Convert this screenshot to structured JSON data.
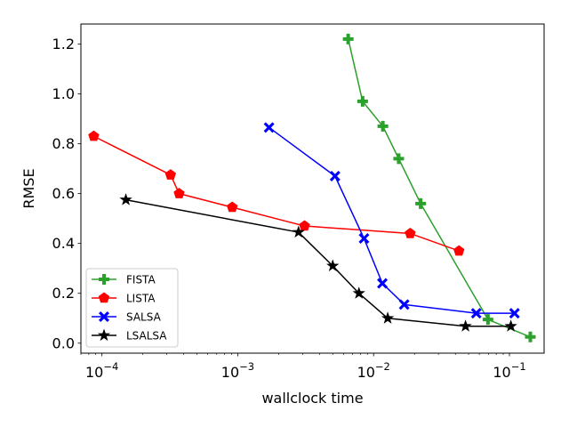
{
  "chart_data": {
    "type": "line",
    "title": "",
    "xlabel": "wallclock time",
    "ylabel": "RMSE",
    "xscale": "log",
    "xlim": [
      7e-05,
      0.18
    ],
    "ylim": [
      -0.04,
      1.28
    ],
    "x_ticks": [
      {
        "value": 0.0001,
        "base": "10",
        "exp": "−4"
      },
      {
        "value": 0.001,
        "base": "10",
        "exp": "−3"
      },
      {
        "value": 0.01,
        "base": "10",
        "exp": "−2"
      },
      {
        "value": 0.1,
        "base": "10",
        "exp": "−1"
      }
    ],
    "y_ticks": [
      {
        "value": 0.0,
        "label": "0.0"
      },
      {
        "value": 0.2,
        "label": "0.2"
      },
      {
        "value": 0.4,
        "label": "0.4"
      },
      {
        "value": 0.6,
        "label": "0.6"
      },
      {
        "value": 0.8,
        "label": "0.8"
      },
      {
        "value": 1.0,
        "label": "1.0"
      },
      {
        "value": 1.2,
        "label": "1.2"
      }
    ],
    "legend_position": "lower-left",
    "series": [
      {
        "name": "FISTA",
        "color": "#2ca02c",
        "marker": "plus",
        "x": [
          0.0065,
          0.0083,
          0.0117,
          0.0153,
          0.0222,
          0.0695,
          0.1425
        ],
        "y": [
          1.22,
          0.97,
          0.87,
          0.74,
          0.56,
          0.095,
          0.025
        ]
      },
      {
        "name": "LISTA",
        "color": "#ff0000",
        "marker": "pentagon",
        "x": [
          8.7e-05,
          0.00032,
          0.00037,
          0.00091,
          0.0031,
          0.0186,
          0.0425
        ],
        "y": [
          0.83,
          0.675,
          0.6,
          0.545,
          0.47,
          0.44,
          0.37
        ]
      },
      {
        "name": "SALSA",
        "color": "#0000ff",
        "marker": "x",
        "x": [
          0.0017,
          0.0052,
          0.0085,
          0.0116,
          0.0168,
          0.057,
          0.109
        ],
        "y": [
          0.865,
          0.67,
          0.42,
          0.24,
          0.155,
          0.12,
          0.12
        ]
      },
      {
        "name": "LSALSA",
        "color": "#000000",
        "marker": "star",
        "x": [
          0.00015,
          0.0028,
          0.005,
          0.0078,
          0.0127,
          0.0475,
          0.1025
        ],
        "y": [
          0.575,
          0.445,
          0.31,
          0.2,
          0.1,
          0.068,
          0.068
        ]
      }
    ]
  }
}
